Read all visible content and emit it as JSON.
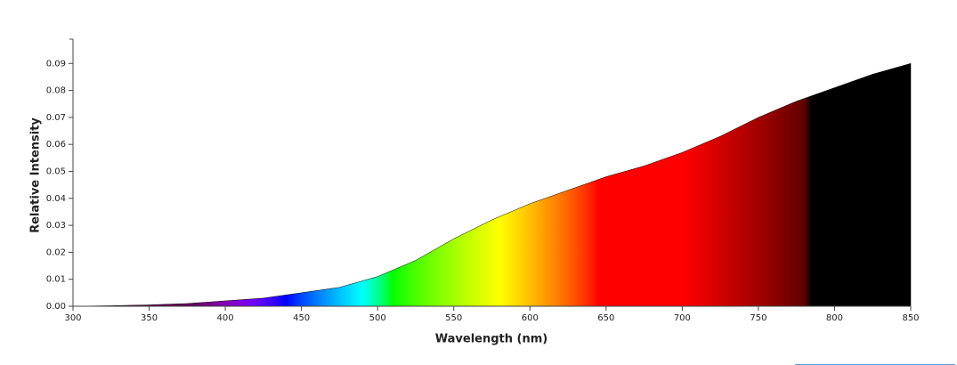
{
  "chart_data": {
    "type": "area",
    "x_label": "Wavelength (nm)",
    "y_label": "Relative Intensity",
    "x": [
      300,
      325,
      350,
      375,
      400,
      425,
      450,
      475,
      500,
      525,
      550,
      575,
      600,
      625,
      650,
      675,
      700,
      725,
      750,
      775,
      800,
      825,
      850
    ],
    "values": [
      0,
      0.0002,
      0.0005,
      0.001,
      0.002,
      0.003,
      0.005,
      0.007,
      0.011,
      0.017,
      0.025,
      0.032,
      0.038,
      0.043,
      0.048,
      0.052,
      0.057,
      0.063,
      0.07,
      0.076,
      0.081,
      0.086,
      0.09
    ],
    "xlim": [
      300,
      850
    ],
    "ylim": [
      0,
      0.099
    ],
    "xticks": [
      300,
      350,
      400,
      450,
      500,
      550,
      600,
      650,
      700,
      750,
      800,
      850
    ],
    "yticks": [
      {
        "value": 0,
        "label": "0.00"
      },
      0.01,
      0.02,
      0.03,
      0.04,
      0.05,
      0.06,
      0.07,
      0.08,
      0.09
    ],
    "fill": "spectrum",
    "grid": false
  }
}
